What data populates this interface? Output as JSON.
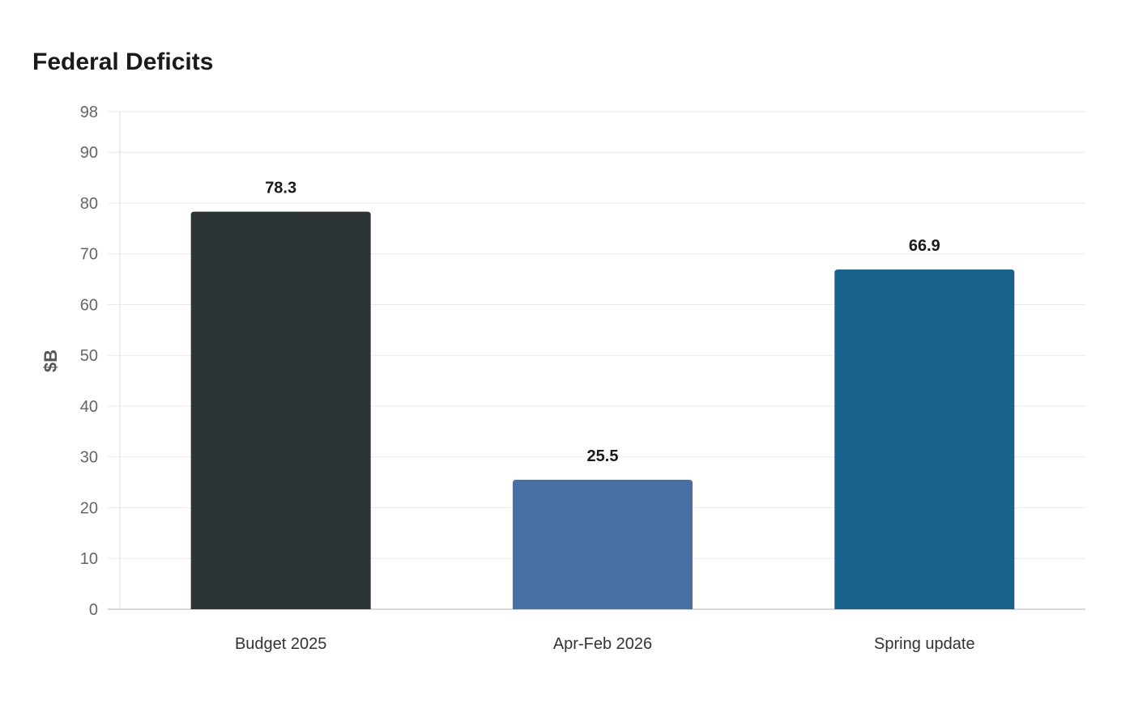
{
  "chart_data": {
    "type": "bar",
    "title": "Federal Deficits",
    "xlabel": "",
    "ylabel": "$B",
    "categories": [
      "Budget 2025",
      "Apr-Feb 2026",
      "Spring update"
    ],
    "values": [
      78.3,
      25.5,
      66.9
    ],
    "value_labels": [
      "78.3",
      "25.5",
      "66.9"
    ],
    "colors": [
      "#2d3436",
      "#4a6fa5",
      "#17618a"
    ],
    "ylim": [
      0,
      98
    ],
    "yticks": [
      0,
      10,
      20,
      30,
      40,
      50,
      60,
      70,
      80,
      90,
      98
    ],
    "grid": true,
    "legend": "none"
  }
}
